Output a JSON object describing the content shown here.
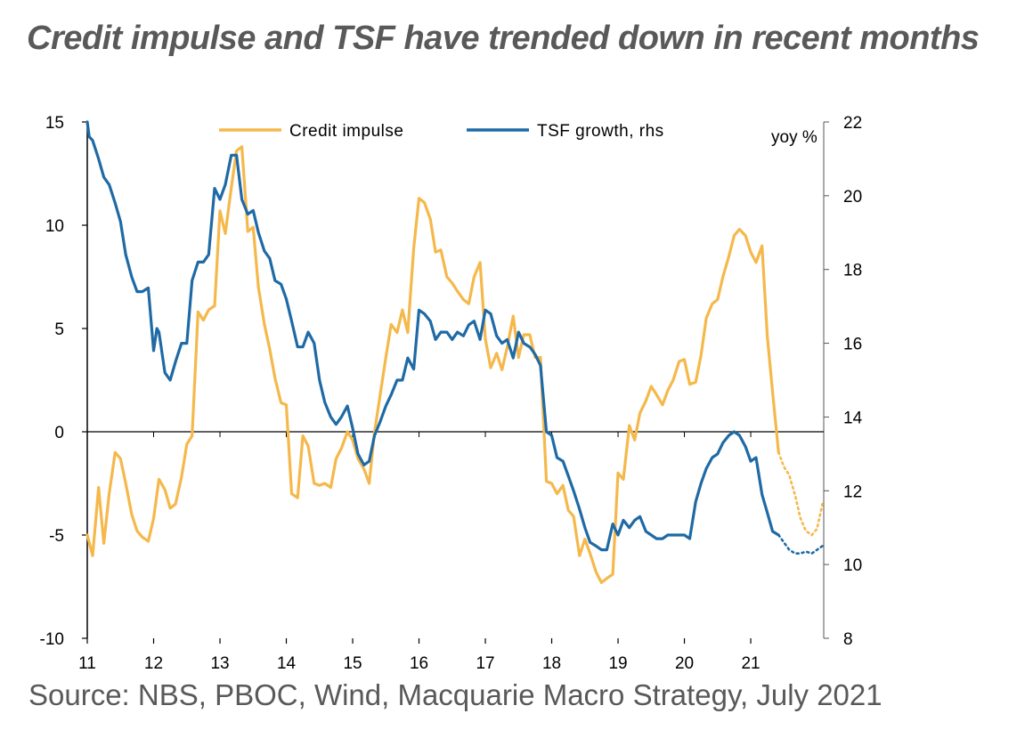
{
  "title": "Credit impulse and TSF have trended down in recent months",
  "source": "Source: NBS, PBOC, Wind, Macquarie Macro Strategy, July 2021",
  "chart_data": {
    "type": "line",
    "title": "Credit impulse and TSF have trended down in recent months",
    "x_ticks": [
      "11",
      "12",
      "13",
      "14",
      "15",
      "16",
      "17",
      "18",
      "19",
      "20",
      "21"
    ],
    "x_range": [
      2011.0,
      2022.1
    ],
    "left_axis": {
      "ylim": [
        -10,
        15
      ],
      "ticks": [
        "-10",
        "-5",
        "0",
        "5",
        "10",
        "15"
      ]
    },
    "right_axis": {
      "label": "yoy %",
      "ylim": [
        8,
        22
      ],
      "ticks": [
        "8",
        "10",
        "12",
        "14",
        "16",
        "18",
        "20",
        "22"
      ]
    },
    "legend": {
      "placement": "top-center"
    },
    "series": [
      {
        "name": "Credit impulse",
        "axis": "left",
        "color": "#F5B84B",
        "x": [
          2011.0,
          2011.08,
          2011.17,
          2011.25,
          2011.33,
          2011.42,
          2011.5,
          2011.58,
          2011.67,
          2011.75,
          2011.83,
          2011.92,
          2012.0,
          2012.08,
          2012.17,
          2012.25,
          2012.33,
          2012.42,
          2012.5,
          2012.58,
          2012.67,
          2012.75,
          2012.83,
          2012.92,
          2013.0,
          2013.08,
          2013.17,
          2013.25,
          2013.33,
          2013.42,
          2013.5,
          2013.58,
          2013.67,
          2013.75,
          2013.83,
          2013.92,
          2014.0,
          2014.08,
          2014.17,
          2014.25,
          2014.33,
          2014.42,
          2014.5,
          2014.58,
          2014.67,
          2014.75,
          2014.83,
          2014.92,
          2015.0,
          2015.08,
          2015.17,
          2015.25,
          2015.33,
          2015.42,
          2015.5,
          2015.58,
          2015.67,
          2015.75,
          2015.83,
          2015.92,
          2016.0,
          2016.08,
          2016.17,
          2016.25,
          2016.33,
          2016.42,
          2016.5,
          2016.58,
          2016.67,
          2016.75,
          2016.83,
          2016.92,
          2017.0,
          2017.08,
          2017.17,
          2017.25,
          2017.33,
          2017.42,
          2017.5,
          2017.58,
          2017.67,
          2017.75,
          2017.83,
          2017.92,
          2018.0,
          2018.08,
          2018.17,
          2018.25,
          2018.33,
          2018.42,
          2018.5,
          2018.58,
          2018.67,
          2018.75,
          2018.83,
          2018.92,
          2019.0,
          2019.08,
          2019.17,
          2019.25,
          2019.33,
          2019.42,
          2019.5,
          2019.58,
          2019.67,
          2019.75,
          2019.83,
          2019.92,
          2020.0,
          2020.08,
          2020.17,
          2020.25,
          2020.33,
          2020.42,
          2020.5,
          2020.58,
          2020.67,
          2020.75,
          2020.83,
          2020.92,
          2021.0,
          2021.08,
          2021.17,
          2021.25,
          2021.33,
          2021.42
        ],
        "values": [
          -5,
          -6,
          -2.7,
          -5.4,
          -3,
          -1,
          -1.3,
          -2.5,
          -4,
          -4.8,
          -5.1,
          -5.3,
          -4.2,
          -2.3,
          -2.8,
          -3.7,
          -3.5,
          -2.2,
          -0.6,
          -0.2,
          5.8,
          5.4,
          5.9,
          6.1,
          10.7,
          9.6,
          11.8,
          13.6,
          13.8,
          9.7,
          9.9,
          7,
          5.2,
          4,
          2.6,
          1.4,
          1.3,
          -3,
          -3.2,
          -0.2,
          -0.7,
          -2.5,
          -2.6,
          -2.5,
          -2.7,
          -1.3,
          -0.8,
          0,
          -0.4,
          -1.3,
          -1.8,
          -2.5,
          0,
          1.9,
          3.6,
          5.2,
          4.8,
          5.9,
          4.8,
          8.9,
          11.3,
          11.1,
          10.3,
          8.7,
          8.8,
          7.5,
          7.2,
          6.8,
          6.4,
          6.2,
          7.5,
          8.2,
          4.5,
          3.1,
          3.8,
          3,
          4.1,
          5.6,
          3.6,
          4.7,
          4.7,
          3.6,
          3.6,
          -2.4,
          -2.5,
          -3,
          -2.6,
          -3.8,
          -4.1,
          -6,
          -5.2,
          -5.9,
          -6.8,
          -7.3,
          -7.1,
          -6.9,
          -2,
          -2.3,
          0.3,
          -0.4,
          0.9,
          1.5,
          2.2,
          1.8,
          1.3,
          2,
          2.5,
          3.4,
          3.5,
          2.3,
          2.4,
          3.7,
          5.5,
          6.2,
          6.4,
          7.5,
          8.5,
          9.5,
          9.8,
          9.5,
          8.7,
          8.2,
          9.0,
          4.6,
          1.9,
          -1.0
        ],
        "forecast_x": [
          2021.42,
          2021.5,
          2021.58,
          2021.67,
          2021.75,
          2021.83,
          2021.92,
          2022.0,
          2022.08
        ],
        "forecast_values": [
          -1.0,
          -1.7,
          -2.1,
          -3.1,
          -4.2,
          -4.8,
          -5.0,
          -4.7,
          -3.5
        ]
      },
      {
        "name": "TSF growth, rhs",
        "axis": "right",
        "color": "#1F6AA5",
        "x": [
          2011.0,
          2011.03,
          2011.08,
          2011.17,
          2011.25,
          2011.33,
          2011.42,
          2011.5,
          2011.58,
          2011.67,
          2011.75,
          2011.83,
          2011.92,
          2012.0,
          2012.05,
          2012.08,
          2012.17,
          2012.25,
          2012.33,
          2012.42,
          2012.5,
          2012.58,
          2012.67,
          2012.75,
          2012.83,
          2012.92,
          2013.0,
          2013.08,
          2013.17,
          2013.25,
          2013.33,
          2013.42,
          2013.5,
          2013.58,
          2013.67,
          2013.75,
          2013.83,
          2013.92,
          2014.0,
          2014.08,
          2014.17,
          2014.25,
          2014.33,
          2014.42,
          2014.5,
          2014.58,
          2014.67,
          2014.75,
          2014.83,
          2014.92,
          2015.0,
          2015.08,
          2015.17,
          2015.25,
          2015.33,
          2015.42,
          2015.5,
          2015.58,
          2015.67,
          2015.75,
          2015.83,
          2015.92,
          2016.0,
          2016.08,
          2016.17,
          2016.25,
          2016.33,
          2016.42,
          2016.5,
          2016.58,
          2016.67,
          2016.75,
          2016.83,
          2016.92,
          2017.0,
          2017.08,
          2017.17,
          2017.25,
          2017.33,
          2017.42,
          2017.5,
          2017.58,
          2017.67,
          2017.75,
          2017.83,
          2017.92,
          2018.0,
          2018.08,
          2018.17,
          2018.25,
          2018.33,
          2018.42,
          2018.5,
          2018.58,
          2018.67,
          2018.75,
          2018.83,
          2018.92,
          2019.0,
          2019.08,
          2019.17,
          2019.25,
          2019.33,
          2019.42,
          2019.5,
          2019.58,
          2019.67,
          2019.75,
          2019.83,
          2019.92,
          2020.0,
          2020.08,
          2020.17,
          2020.25,
          2020.33,
          2020.42,
          2020.5,
          2020.58,
          2020.67,
          2020.75,
          2020.83,
          2020.92,
          2021.0,
          2021.08,
          2021.17,
          2021.25,
          2021.33,
          2021.42
        ],
        "values": [
          22,
          21.6,
          21.5,
          21,
          20.5,
          20.3,
          19.8,
          19.3,
          18.4,
          17.8,
          17.4,
          17.4,
          17.5,
          15.8,
          16.4,
          16.3,
          15.2,
          15,
          15.5,
          16,
          16,
          17.7,
          18.2,
          18.2,
          18.4,
          20.2,
          19.9,
          20.3,
          21.1,
          21.1,
          19.9,
          19.5,
          19.6,
          19,
          18.5,
          18.3,
          17.7,
          17.6,
          17.2,
          16.6,
          15.9,
          15.9,
          16.3,
          16,
          15,
          14.4,
          14,
          13.8,
          14,
          14.3,
          13.7,
          13,
          12.7,
          12.8,
          13.5,
          13.9,
          14.3,
          14.6,
          15,
          15,
          15.6,
          15.3,
          16.9,
          16.8,
          16.6,
          16.1,
          16.3,
          16.3,
          16.1,
          16.3,
          16.2,
          16.5,
          16.6,
          16.1,
          16.9,
          16.8,
          16.2,
          16,
          16.1,
          15.6,
          16.3,
          16.0,
          15.9,
          15.7,
          15.4,
          13.6,
          13.5,
          12.9,
          12.8,
          12.4,
          12.0,
          11.5,
          11.0,
          10.6,
          10.5,
          10.4,
          10.4,
          11.1,
          10.8,
          11.2,
          11.0,
          11.2,
          11.3,
          10.9,
          10.8,
          10.7,
          10.7,
          10.8,
          10.8,
          10.8,
          10.8,
          10.7,
          11.7,
          12.2,
          12.6,
          12.9,
          13.0,
          13.3,
          13.5,
          13.6,
          13.5,
          13.2,
          12.8,
          12.9,
          11.9,
          11.4,
          10.9,
          10.8
        ],
        "forecast_x": [
          2021.42,
          2021.5,
          2021.58,
          2021.67,
          2021.75,
          2021.83,
          2021.92,
          2022.0,
          2022.08
        ],
        "forecast_values": [
          10.8,
          10.6,
          10.4,
          10.3,
          10.3,
          10.35,
          10.3,
          10.4,
          10.5
        ]
      }
    ]
  }
}
